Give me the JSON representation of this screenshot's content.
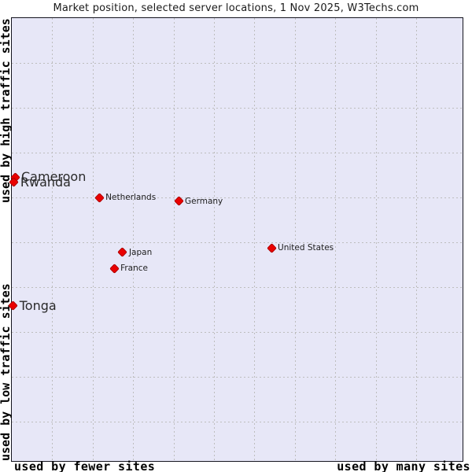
{
  "title": "Market position, selected server locations, 1 Nov 2025, W3Techs.com",
  "axis_labels": {
    "y_top": "used by high traffic sites",
    "y_bottom": "used by low traffic sites",
    "x_left": "used by fewer sites",
    "x_right": "used by many sites"
  },
  "colors": {
    "plot_background": "#e7e7f7",
    "marker": "#ea0000",
    "grid": "#bdbdbd",
    "border": "#14141e",
    "text": "#1a1a1a"
  },
  "chart_data": {
    "type": "scatter",
    "title": "Market position, selected server locations, 1 Nov 2025, W3Techs.com",
    "x_axis": {
      "left_label": "used by fewer sites",
      "right_label": "used by many sites",
      "scale": "qualitative, fraction of plot width from left"
    },
    "y_axis": {
      "top_label": "used by high traffic sites",
      "bottom_label": "used by low traffic sites",
      "scale": "qualitative, fraction of plot height from top"
    },
    "grid": true,
    "points": [
      {
        "label": "Cameroon",
        "x": 0.007,
        "y": 0.359,
        "label_size": "large"
      },
      {
        "label": "Rwanda",
        "x": 0.005,
        "y": 0.371,
        "label_size": "large"
      },
      {
        "label": "Netherlands",
        "x": 0.194,
        "y": 0.405,
        "label_size": "small"
      },
      {
        "label": "Germany",
        "x": 0.37,
        "y": 0.413,
        "label_size": "small"
      },
      {
        "label": "Japan",
        "x": 0.246,
        "y": 0.529,
        "label_size": "small"
      },
      {
        "label": "France",
        "x": 0.227,
        "y": 0.565,
        "label_size": "small"
      },
      {
        "label": "United States",
        "x": 0.576,
        "y": 0.519,
        "label_size": "small"
      },
      {
        "label": "Tonga",
        "x": 0.003,
        "y": 0.65,
        "label_size": "large"
      }
    ]
  }
}
